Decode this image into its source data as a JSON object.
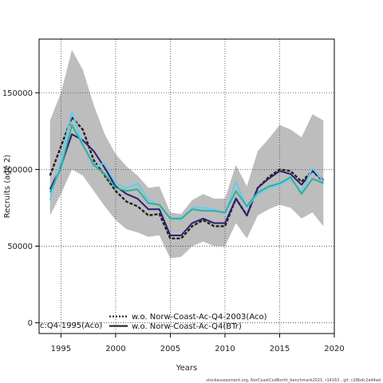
{
  "chart_data": {
    "type": "line",
    "xlabel": "Years",
    "ylabel": "Recruits (age 2)",
    "xlim": [
      1993,
      2020
    ],
    "ylim": [
      -7000,
      185000
    ],
    "x_ticks": [
      1995,
      2000,
      2005,
      2010,
      2015,
      2020
    ],
    "y_ticks": [
      0,
      50000,
      100000,
      150000
    ],
    "grid": true,
    "x": [
      1994,
      1995,
      1996,
      1997,
      1998,
      1999,
      2000,
      2001,
      2002,
      2003,
      2004,
      2005,
      2006,
      2007,
      2008,
      2009,
      2010,
      2011,
      2012,
      2013,
      2014,
      2015,
      2016,
      2017,
      2018,
      2019
    ],
    "band": {
      "upper": [
        132000,
        150000,
        178000,
        165000,
        142000,
        123000,
        110000,
        102000,
        96000,
        88000,
        89000,
        72000,
        71000,
        80000,
        84000,
        81000,
        81000,
        103000,
        89000,
        112000,
        120000,
        129000,
        126000,
        121000,
        136000,
        132000
      ],
      "lower": [
        70000,
        84000,
        100000,
        96000,
        86000,
        76000,
        67000,
        61000,
        59000,
        56000,
        57000,
        42000,
        43000,
        50000,
        53000,
        50000,
        50000,
        65000,
        55000,
        70000,
        74000,
        77000,
        75000,
        68000,
        72000,
        63000
      ]
    },
    "series": [
      {
        "name": "",
        "color": "#222222",
        "dash": "dashed",
        "values": [
          96000,
          115000,
          134000,
          126000,
          106000,
          96000,
          86000,
          79000,
          76000,
          70000,
          71000,
          55000,
          55000,
          63000,
          67000,
          63000,
          63000,
          81000,
          70000,
          88000,
          95000,
          100000,
          99000,
          92000,
          99000,
          92000
        ]
      },
      {
        "name": "",
        "color": "#2f1e6e",
        "dash": "solid",
        "values": [
          87000,
          102000,
          123000,
          119000,
          112000,
          101000,
          89000,
          84000,
          81000,
          74000,
          74000,
          57000,
          57000,
          65000,
          68000,
          65000,
          65000,
          81000,
          70000,
          88000,
          94000,
          99000,
          97000,
          90000,
          99000,
          93000
        ]
      },
      {
        "name": "c:Q4-1995(Aco)",
        "color": "#66ccee",
        "dash": "solid",
        "values": [
          80000,
          106000,
          138000,
          116000,
          102000,
          104000,
          91000,
          88000,
          91000,
          80000,
          77000,
          68000,
          67000,
          75000,
          75000,
          74000,
          71000,
          92000,
          75000,
          84000,
          88000,
          90000,
          94000,
          85000,
          101000,
          92000
        ]
      },
      {
        "name": "w.o. Norw-Coast-Ac-Q4-2003(Aco)",
        "color": "#2bb29e",
        "dash": "solid",
        "values": [
          85000,
          101000,
          129000,
          116000,
          103000,
          97000,
          88000,
          86000,
          87000,
          78000,
          77000,
          68000,
          68000,
          74000,
          73000,
          73000,
          72000,
          86000,
          76000,
          85000,
          89000,
          91000,
          95000,
          84000,
          94000,
          91000
        ]
      }
    ],
    "legend": [
      {
        "label": "w.o. Norw-Coast-Ac-Q4-2003(Aco)",
        "color": "#2bb29e",
        "style": "dotted"
      },
      {
        "label": "w.o. Norw-Coast-Ac-Q4(BTr)",
        "color": "#2bb29e",
        "style": "solid"
      }
    ],
    "legend_placement": "bottom-center"
  },
  "footer": "stockassessment.org,  NorCoastCodNorth_benchmark2021,  r14163 ,  git: c28bdc2a44ad"
}
